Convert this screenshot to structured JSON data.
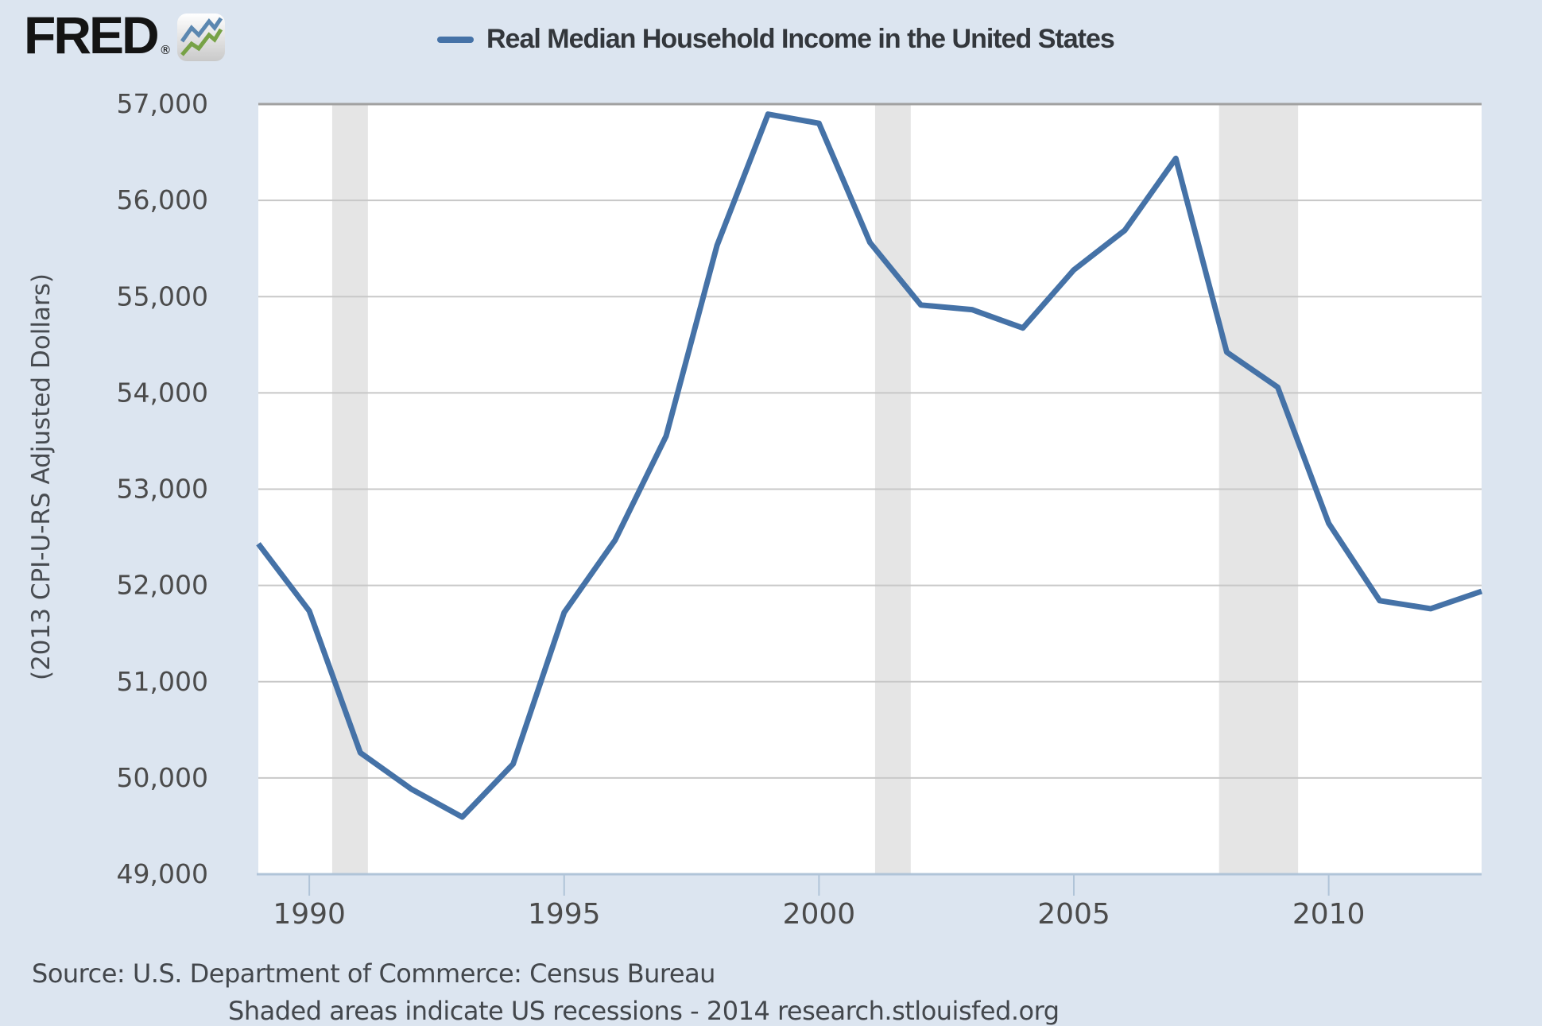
{
  "header": {
    "logo_text": "FRED",
    "logo_registered": "®"
  },
  "chart_data": {
    "type": "line",
    "title": "Real Median Household Income in the United States",
    "xlabel": "",
    "ylabel": "(2013 CPI-U-RS Adjusted Dollars)",
    "legend_position": "top",
    "grid": true,
    "x_range": [
      1989,
      2013
    ],
    "ylim": [
      49000,
      57000
    ],
    "ytick_step": 1000,
    "xticks": [
      1990,
      1995,
      2000,
      2005,
      2010
    ],
    "recession_bands": [
      [
        1990.45,
        1991.15
      ],
      [
        2001.1,
        2001.8
      ],
      [
        2007.85,
        2009.4
      ]
    ],
    "series": [
      {
        "name": "Real Median Household Income in the United States",
        "color": "#4572a7",
        "x": [
          1989,
          1990,
          1991,
          1992,
          1993,
          1994,
          1995,
          1996,
          1997,
          1998,
          1999,
          2000,
          2001,
          2002,
          2003,
          2004,
          2005,
          2006,
          2007,
          2008,
          2009,
          2010,
          2011,
          2012,
          2013
        ],
        "values": [
          52432,
          51735,
          50262,
          49885,
          49594,
          50145,
          51719,
          52471,
          53551,
          55532,
          56895,
          56800,
          55562,
          54913,
          54865,
          54674,
          55278,
          55689,
          56436,
          54423,
          54059,
          52646,
          51842,
          51758,
          51939
        ]
      }
    ]
  },
  "footer": {
    "source": "Source: U.S. Department of Commerce: Census Bureau",
    "note": "Shaded areas indicate US recessions - 2014 research.stlouisfed.org"
  },
  "colors": {
    "background": "#dce5f0",
    "plot_background": "#ffffff",
    "line": "#4572a7",
    "gridline": "#c8c8c8",
    "plot_top_border": "#a1a1a1",
    "recession_band": "#e5e5e5",
    "axis": "#b0c4d8",
    "tick_text": "#4b4b4b"
  }
}
